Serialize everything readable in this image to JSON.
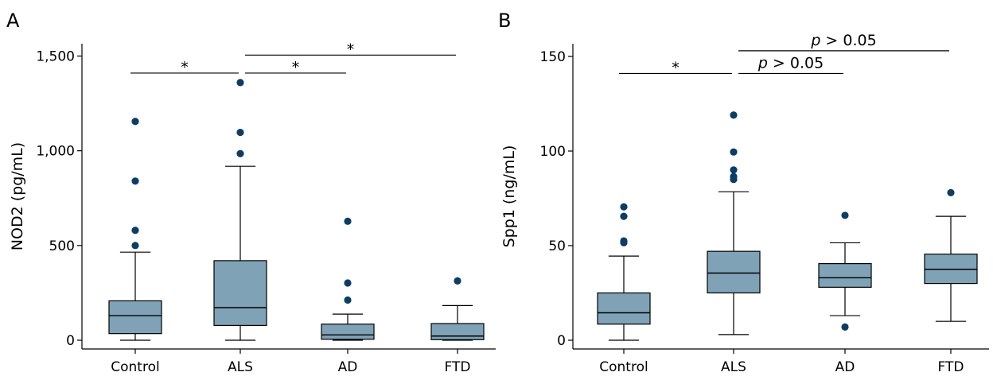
{
  "chart_data": [
    {
      "panel_label": "A",
      "type": "box",
      "ylabel": "NOD2 (pg/mL)",
      "ylim": [
        0,
        1550
      ],
      "yticks": [
        0,
        500,
        1000,
        1500
      ],
      "ytick_labels": [
        "0",
        "500",
        "1,000",
        "1,500"
      ],
      "categories": [
        "Control",
        "ALS",
        "AD",
        "FTD"
      ],
      "boxes": [
        {
          "category": "Control",
          "whisker_low": 0,
          "q1": 35,
          "median": 130,
          "q3": 208,
          "whisker_high": 465,
          "outliers": [
            500,
            580,
            840,
            1155
          ]
        },
        {
          "category": "ALS",
          "whisker_low": 0,
          "q1": 78,
          "median": 172,
          "q3": 420,
          "whisker_high": 918,
          "outliers": [
            985,
            1097,
            1360
          ]
        },
        {
          "category": "AD",
          "whisker_low": 0,
          "q1": 5,
          "median": 28,
          "q3": 85,
          "whisker_high": 138,
          "outliers": [
            212,
            302,
            628
          ]
        },
        {
          "category": "FTD",
          "whisker_low": 0,
          "q1": 3,
          "median": 22,
          "q3": 88,
          "whisker_high": 183,
          "outliers": [
            313
          ]
        }
      ],
      "annotations": [
        {
          "from": "Control",
          "to": "ALS",
          "y": 1410,
          "text": "*"
        },
        {
          "from": "ALS",
          "to": "AD",
          "y": 1410,
          "text": "*"
        },
        {
          "from": "ALS",
          "to": "FTD",
          "y": 1505,
          "text": "*"
        }
      ]
    },
    {
      "panel_label": "B",
      "type": "box",
      "ylabel": "Spp1 (ng/mL)",
      "ylim": [
        0,
        155
      ],
      "yticks": [
        0,
        50,
        100,
        150
      ],
      "ytick_labels": [
        "0",
        "50",
        "100",
        "150"
      ],
      "categories": [
        "Control",
        "ALS",
        "AD",
        "FTD"
      ],
      "boxes": [
        {
          "category": "Control",
          "whisker_low": 0,
          "q1": 8.5,
          "median": 14.5,
          "q3": 25,
          "whisker_high": 44.5,
          "outliers": [
            51.5,
            52.5,
            65.5,
            70.5
          ]
        },
        {
          "category": "ALS",
          "whisker_low": 3,
          "q1": 25,
          "median": 35.5,
          "q3": 47,
          "whisker_high": 78.5,
          "outliers": [
            85,
            86.5,
            90,
            99.5,
            119
          ]
        },
        {
          "category": "AD",
          "whisker_low": 13,
          "q1": 28,
          "median": 33,
          "q3": 40.5,
          "whisker_high": 51.5,
          "outliers": [
            7,
            66
          ]
        },
        {
          "category": "FTD",
          "whisker_low": 10,
          "q1": 30,
          "median": 37.5,
          "q3": 45.5,
          "whisker_high": 65.5,
          "outliers": [
            78
          ]
        }
      ],
      "annotations": [
        {
          "from": "Control",
          "to": "ALS",
          "y": 141,
          "text": "*"
        },
        {
          "from": "ALS",
          "to": "AD",
          "y": 141,
          "text": "p > 0.05"
        },
        {
          "from": "ALS",
          "to": "FTD",
          "y": 153,
          "text": "p > 0.05"
        }
      ]
    }
  ]
}
